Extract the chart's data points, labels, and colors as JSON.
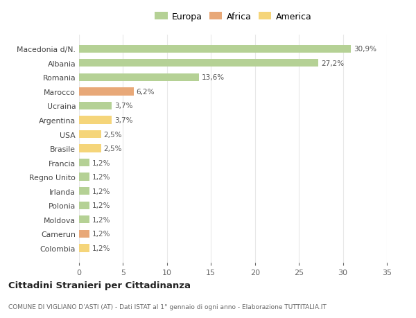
{
  "categories": [
    "Macedonia d/N.",
    "Albania",
    "Romania",
    "Marocco",
    "Ucraina",
    "Argentina",
    "USA",
    "Brasile",
    "Francia",
    "Regno Unito",
    "Irlanda",
    "Polonia",
    "Moldova",
    "Camerun",
    "Colombia"
  ],
  "values": [
    30.9,
    27.2,
    13.6,
    6.2,
    3.7,
    3.7,
    2.5,
    2.5,
    1.2,
    1.2,
    1.2,
    1.2,
    1.2,
    1.2,
    1.2
  ],
  "labels": [
    "30,9%",
    "27,2%",
    "13,6%",
    "6,2%",
    "3,7%",
    "3,7%",
    "2,5%",
    "2,5%",
    "1,2%",
    "1,2%",
    "1,2%",
    "1,2%",
    "1,2%",
    "1,2%",
    "1,2%"
  ],
  "colors": [
    "#b5d195",
    "#b5d195",
    "#b5d195",
    "#e8a878",
    "#b5d195",
    "#f5d57a",
    "#f5d57a",
    "#f5d57a",
    "#b5d195",
    "#b5d195",
    "#b5d195",
    "#b5d195",
    "#b5d195",
    "#e8a878",
    "#f5d57a"
  ],
  "legend_labels": [
    "Europa",
    "Africa",
    "America"
  ],
  "legend_colors": [
    "#b5d195",
    "#e8a878",
    "#f5d57a"
  ],
  "xlim": [
    0,
    35
  ],
  "xticks": [
    0,
    5,
    10,
    15,
    20,
    25,
    30,
    35
  ],
  "title": "Cittadini Stranieri per Cittadinanza",
  "subtitle": "COMUNE DI VIGLIANO D'ASTI (AT) - Dati ISTAT al 1° gennaio di ogni anno - Elaborazione TUTTITALIA.IT",
  "bg_color": "#ffffff",
  "grid_color": "#e8e8e8",
  "bar_height": 0.55
}
